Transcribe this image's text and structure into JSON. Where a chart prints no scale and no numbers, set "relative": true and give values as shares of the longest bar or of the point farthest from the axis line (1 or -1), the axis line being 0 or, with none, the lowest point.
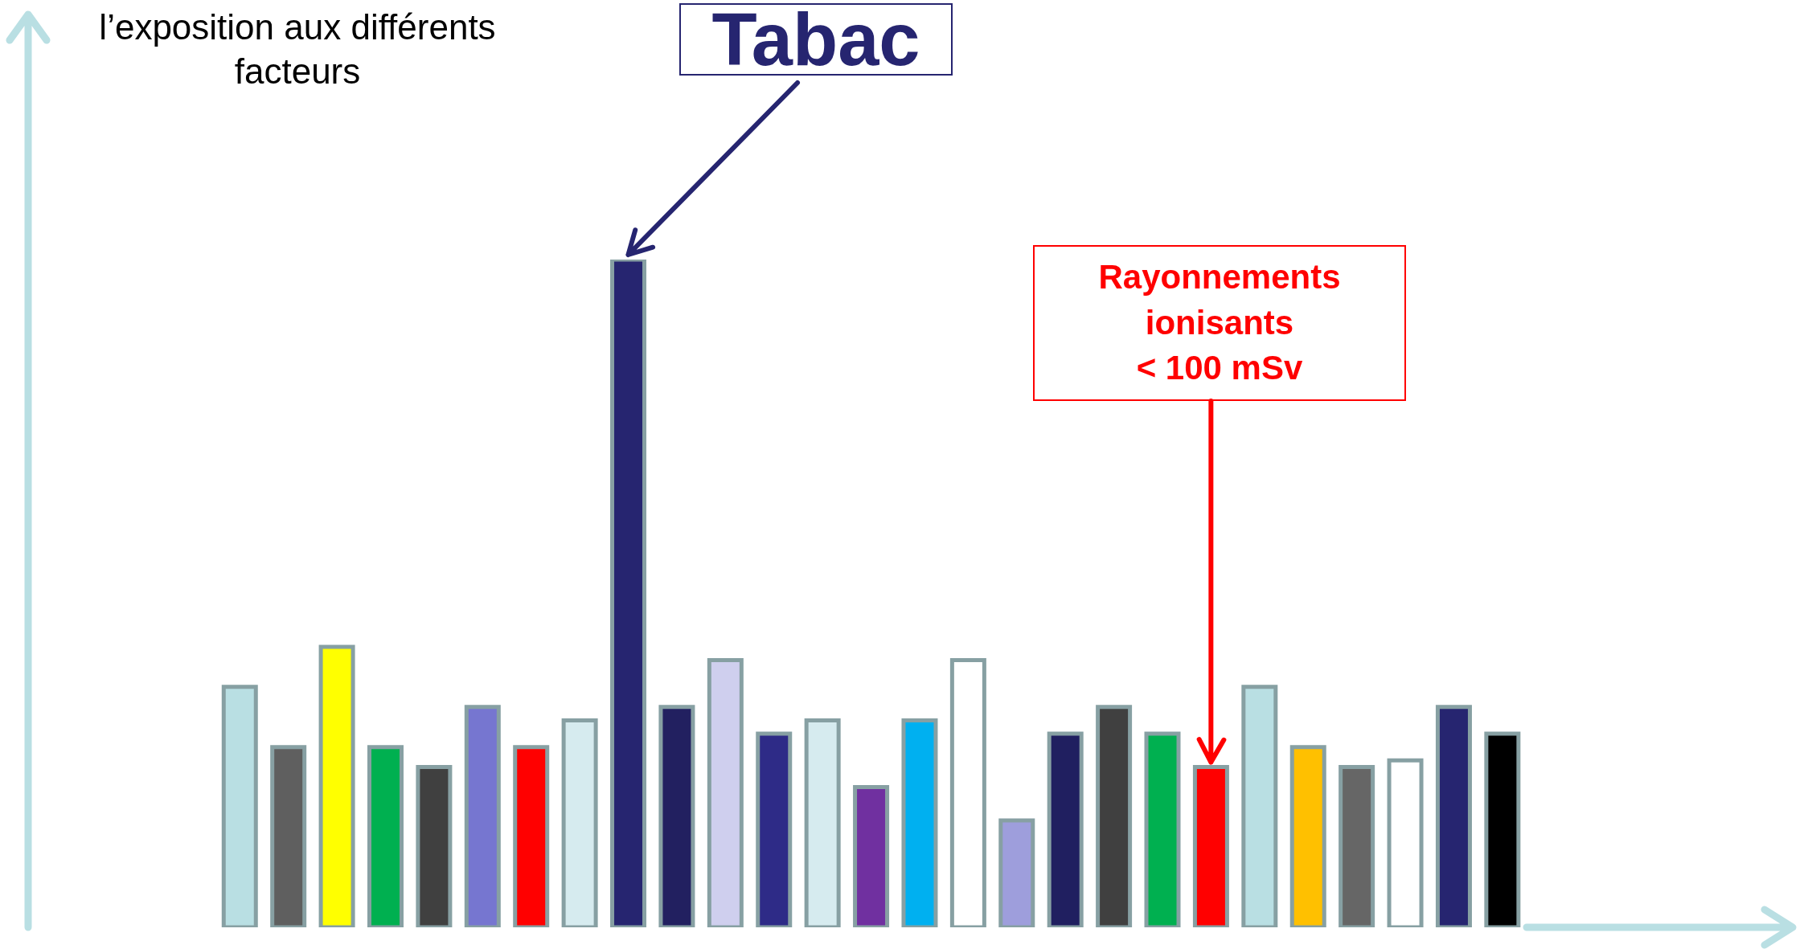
{
  "chart_data": {
    "type": "bar",
    "relative": true,
    "ylabel": "l’exposition aux différents\nfacteurs",
    "categories": [
      null,
      null,
      null,
      null,
      null,
      null,
      null,
      null,
      null,
      null,
      null,
      null,
      null,
      null,
      null,
      null,
      null,
      null,
      null,
      null,
      null,
      null,
      null,
      null,
      null,
      null,
      null
    ],
    "values": [
      0.36,
      0.27,
      0.42,
      0.27,
      0.24,
      0.33,
      0.27,
      0.31,
      1,
      0.33,
      0.4,
      0.29,
      0.31,
      0.21,
      0.31,
      0.4,
      0.16,
      0.29,
      0.33,
      0.29,
      0.24,
      0.36,
      0.27,
      0.24,
      0.25,
      0.33,
      0.29
    ],
    "colors": [
      "#b9dfe3",
      "#5f5f5f",
      "#ffff00",
      "#00b050",
      "#404040",
      "#7676d0",
      "#ff0000",
      "#d6ebef",
      "#262570",
      "#222060",
      "#cfcfee",
      "#2e2b87",
      "#d6ebef",
      "#7030a0",
      "#00b0f0",
      "#ffffff",
      "#9e9edc",
      "#201f60",
      "#404040",
      "#00b050",
      "#ff0000",
      "#b9dfe3",
      "#ffc000",
      "#666666",
      "#ffffff",
      "#262570",
      "#000000"
    ],
    "annotations": [
      "Tabac",
      "Rayonnements\nionisants\n< 100 mSv"
    ],
    "grid": false,
    "legend": false
  }
}
